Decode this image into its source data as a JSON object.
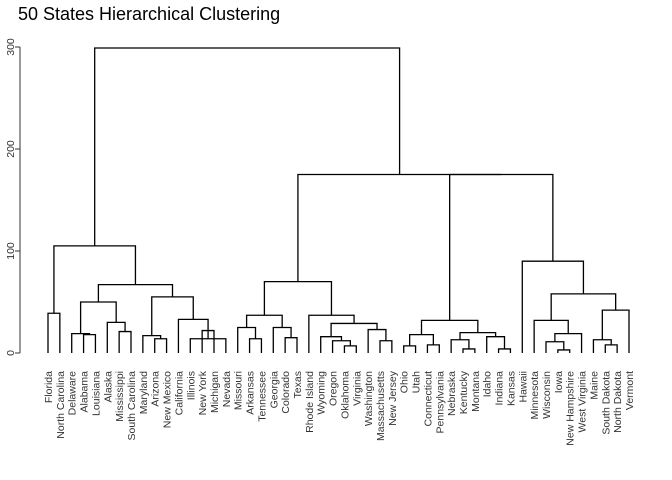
{
  "chart_data": {
    "type": "dendrogram",
    "title": "50 States Hierarchical Clustering",
    "xlabel": "",
    "ylabel": "",
    "ylim": [
      0,
      300
    ],
    "y_ticks": [
      0,
      100,
      200,
      300
    ],
    "grid": false,
    "leaves": [
      "Florida",
      "North Carolina",
      "Delaware",
      "Alabama",
      "Louisiana",
      "Alaska",
      "Mississippi",
      "South Carolina",
      "Maryland",
      "Arizona",
      "New Mexico",
      "California",
      "Illinois",
      "New York",
      "Michigan",
      "Nevada",
      "Missouri",
      "Arkansas",
      "Tennessee",
      "Georgia",
      "Colorado",
      "Texas",
      "Rhode Island",
      "Wyoming",
      "Oregon",
      "Oklahoma",
      "Virginia",
      "Washington",
      "Massachusetts",
      "New Jersey",
      "Ohio",
      "Utah",
      "Connecticut",
      "Pennsylvania",
      "Nebraska",
      "Kentucky",
      "Montana",
      "Idaho",
      "Indiana",
      "Kansas",
      "Hawaii",
      "Minnesota",
      "Wisconsin",
      "Iowa",
      "New Hampshire",
      "West Virginia",
      "Maine",
      "South Dakota",
      "North Dakota",
      "Vermont"
    ],
    "merges": [
      {
        "left": "Florida",
        "right": "North Carolina",
        "height": 39
      },
      {
        "left": "Alabama",
        "right": "Louisiana",
        "height": 18
      },
      {
        "left": "Delaware",
        "right": 1,
        "height": 19
      },
      {
        "left": "Mississippi",
        "right": "South Carolina",
        "height": 21
      },
      {
        "left": "Alaska",
        "right": 3,
        "height": 30
      },
      {
        "left": 2,
        "right": 4,
        "height": 50
      },
      {
        "left": "Arizona",
        "right": "New Mexico",
        "height": 14
      },
      {
        "left": "Maryland",
        "right": 6,
        "height": 17
      },
      {
        "left": "New York",
        "right": "Michigan",
        "height": 22
      },
      {
        "left": "Illinois",
        "right": "Nevada",
        "height": 14
      },
      {
        "left": 8,
        "right": 9,
        "height": 23
      },
      {
        "left": "California",
        "right": 10,
        "height": 33
      },
      {
        "left": 7,
        "right": 11,
        "height": 55
      },
      {
        "left": 5,
        "right": 12,
        "height": 67
      },
      {
        "left": 0,
        "right": 13,
        "height": 105
      },
      {
        "left": "Arkansas",
        "right": "Tennessee",
        "height": 14
      },
      {
        "left": "Missouri",
        "right": 15,
        "height": 25
      },
      {
        "left": "Colorado",
        "right": "Texas",
        "height": 15
      },
      {
        "left": "Georgia",
        "right": 17,
        "height": 25
      },
      {
        "left": 16,
        "right": 18,
        "height": 37
      },
      {
        "left": "Oklahoma",
        "right": "Virginia",
        "height": 7
      },
      {
        "left": "Oregon",
        "right": 20,
        "height": 12
      },
      {
        "left": "Wyoming",
        "right": 21,
        "height": 16
      },
      {
        "left": "Massachusetts",
        "right": "New Jersey",
        "height": 12
      },
      {
        "left": "Washington",
        "right": 23,
        "height": 23
      },
      {
        "left": 22,
        "right": 24,
        "height": 29
      },
      {
        "left": "Rhode Island",
        "right": 25,
        "height": 37
      },
      {
        "left": 19,
        "right": 26,
        "height": 70
      },
      {
        "left": "Ohio",
        "right": "Utah",
        "height": 7
      },
      {
        "left": "Connecticut",
        "right": "Pennsylvania",
        "height": 8
      },
      {
        "left": 28,
        "right": 29,
        "height": 18
      },
      {
        "left": "Kentucky",
        "right": "Montana",
        "height": 4
      },
      {
        "left": "Nebraska",
        "right": 31,
        "height": 13
      },
      {
        "left": "Indiana",
        "right": "Kansas",
        "height": 4
      },
      {
        "left": "Idaho",
        "right": 33,
        "height": 16
      },
      {
        "left": 32,
        "right": 34,
        "height": 20
      },
      {
        "left": 30,
        "right": 35,
        "height": 32
      },
      {
        "left": "Iowa",
        "right": "New Hampshire",
        "height": 3
      },
      {
        "left": "Wisconsin",
        "right": 37,
        "height": 11
      },
      {
        "left": 38,
        "right": "West Virginia",
        "height": 19
      },
      {
        "left": "Minnesota",
        "right": 39,
        "height": 32
      },
      {
        "left": "South Dakota",
        "right": "North Dakota",
        "height": 8
      },
      {
        "left": "Maine",
        "right": 41,
        "height": 13
      },
      {
        "left": 42,
        "right": "Vermont",
        "height": 42
      },
      {
        "left": 40,
        "right": 43,
        "height": 58
      },
      {
        "left": "Hawaii",
        "right": 44,
        "height": 90
      },
      {
        "left": 36,
        "right": 45,
        "height": 175
      },
      {
        "left": 27,
        "right": 46,
        "height": 175
      },
      {
        "left": 14,
        "right": 47,
        "height": 299
      }
    ]
  }
}
